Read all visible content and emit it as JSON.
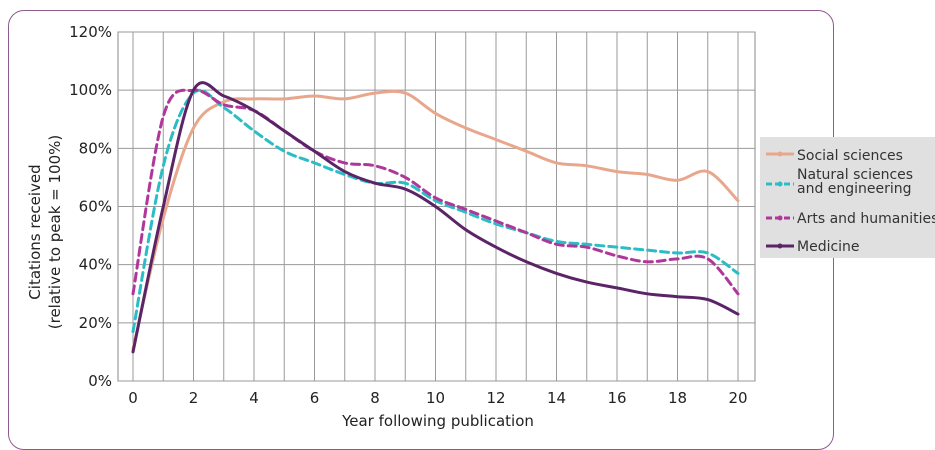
{
  "chart_data": {
    "type": "line",
    "title": "",
    "xlabel": "Year following publication",
    "ylabel_line1": "Citations received",
    "ylabel_line2": "(relative to peak = 100%)",
    "xlim": [
      0,
      20
    ],
    "ylim": [
      0,
      120
    ],
    "x_ticks": [
      "0",
      "2",
      "4",
      "6",
      "8",
      "10",
      "12",
      "14",
      "16",
      "18",
      "20"
    ],
    "y_ticks": [
      "0%",
      "20%",
      "40%",
      "60%",
      "80%",
      "100%",
      "120%"
    ],
    "grid": true,
    "legend_position": "right",
    "series": [
      {
        "name": "Social sciences",
        "color": "#e8a78c",
        "style": "solid",
        "points": [
          [
            0,
            11
          ],
          [
            1,
            56
          ],
          [
            2,
            87
          ],
          [
            3,
            96
          ],
          [
            4,
            97
          ],
          [
            5,
            97
          ],
          [
            6,
            98
          ],
          [
            7,
            97
          ],
          [
            8,
            99
          ],
          [
            9,
            99
          ],
          [
            10,
            92
          ],
          [
            11,
            87
          ],
          [
            12,
            83
          ],
          [
            13,
            79
          ],
          [
            14,
            75
          ],
          [
            15,
            74
          ],
          [
            16,
            72
          ],
          [
            17,
            71
          ],
          [
            18,
            69
          ],
          [
            19,
            72
          ],
          [
            20,
            62
          ]
        ]
      },
      {
        "name": "Natural sciences and engineering",
        "color": "#2bbdc5",
        "style": "dashed",
        "points": [
          [
            0,
            17
          ],
          [
            1,
            74
          ],
          [
            2,
            99
          ],
          [
            3,
            94
          ],
          [
            4,
            86
          ],
          [
            5,
            79
          ],
          [
            6,
            75
          ],
          [
            7,
            71
          ],
          [
            8,
            68
          ],
          [
            9,
            68
          ],
          [
            10,
            62
          ],
          [
            11,
            58
          ],
          [
            12,
            54
          ],
          [
            13,
            51
          ],
          [
            14,
            48
          ],
          [
            15,
            47
          ],
          [
            16,
            46
          ],
          [
            17,
            45
          ],
          [
            18,
            44
          ],
          [
            19,
            44
          ],
          [
            20,
            37
          ]
        ]
      },
      {
        "name": "Arts and humanities",
        "color": "#b0379a",
        "style": "dashed",
        "points": [
          [
            0,
            30
          ],
          [
            1,
            91
          ],
          [
            2,
            100
          ],
          [
            3,
            95
          ],
          [
            4,
            93
          ],
          [
            5,
            86
          ],
          [
            6,
            79
          ],
          [
            7,
            75
          ],
          [
            8,
            74
          ],
          [
            9,
            70
          ],
          [
            10,
            63
          ],
          [
            11,
            59
          ],
          [
            12,
            55
          ],
          [
            13,
            51
          ],
          [
            14,
            47
          ],
          [
            15,
            46
          ],
          [
            16,
            43
          ],
          [
            17,
            41
          ],
          [
            18,
            42
          ],
          [
            19,
            42
          ],
          [
            20,
            30
          ]
        ]
      },
      {
        "name": "Medicine",
        "color": "#5b2467",
        "style": "solid",
        "points": [
          [
            0,
            10
          ],
          [
            1,
            60
          ],
          [
            2,
            100
          ],
          [
            3,
            98
          ],
          [
            4,
            93
          ],
          [
            5,
            86
          ],
          [
            6,
            79
          ],
          [
            7,
            72
          ],
          [
            8,
            68
          ],
          [
            9,
            66
          ],
          [
            10,
            60
          ],
          [
            11,
            52
          ],
          [
            12,
            46
          ],
          [
            13,
            41
          ],
          [
            14,
            37
          ],
          [
            15,
            34
          ],
          [
            16,
            32
          ],
          [
            17,
            30
          ],
          [
            18,
            29
          ],
          [
            19,
            28
          ],
          [
            20,
            23
          ]
        ]
      }
    ]
  }
}
